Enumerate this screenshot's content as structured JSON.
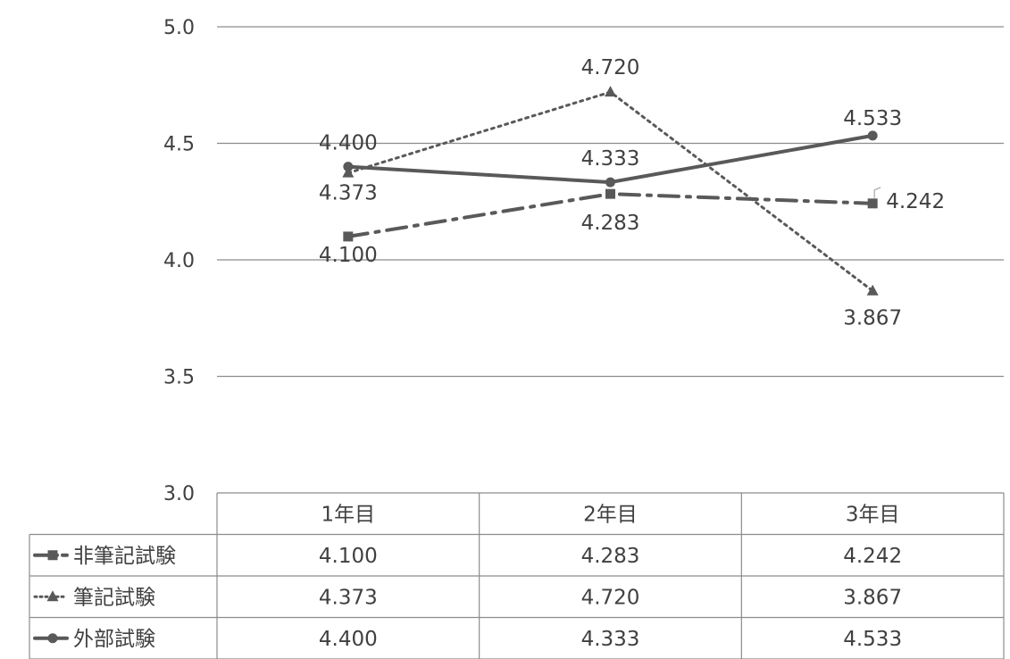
{
  "chart_data": {
    "type": "line",
    "categories": [
      "1年目",
      "2年目",
      "3年目"
    ],
    "series": [
      {
        "name": "非筆記試験",
        "values": [
          4.1,
          4.283,
          4.242
        ],
        "value_labels": [
          "4.100",
          "4.283",
          "4.242"
        ],
        "marker": "square",
        "dash": "dash-dot",
        "color": "#595959"
      },
      {
        "name": "筆記試験",
        "values": [
          4.373,
          4.72,
          3.867
        ],
        "value_labels": [
          "4.373",
          "4.720",
          "3.867"
        ],
        "marker": "triangle",
        "dash": "dotted",
        "color": "#595959"
      },
      {
        "name": "外部試験",
        "values": [
          4.4,
          4.333,
          4.533
        ],
        "value_labels": [
          "4.400",
          "4.333",
          "4.533"
        ],
        "marker": "circle",
        "dash": "solid",
        "color": "#595959"
      }
    ],
    "ylim": [
      3.0,
      5.0
    ],
    "yticks": [
      "3.0",
      "3.5",
      "4.0",
      "4.5",
      "5.0"
    ],
    "grid": true,
    "legend": "data-table"
  }
}
